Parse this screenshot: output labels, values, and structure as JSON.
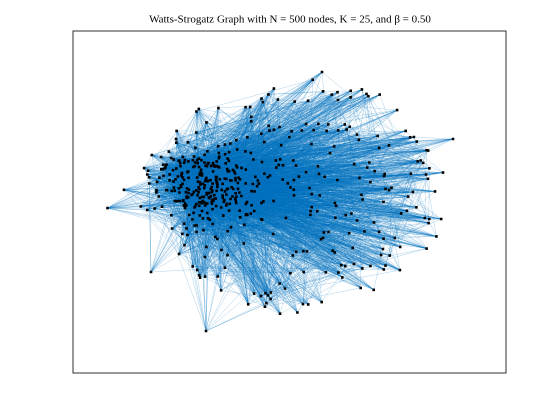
{
  "chart_data": {
    "type": "graph",
    "title": "Watts-Strogatz Graph with N = 500 nodes, K = 25, and β = 0.50",
    "edge_color": "#0072bd",
    "node_color": "#000000"
  }
}
